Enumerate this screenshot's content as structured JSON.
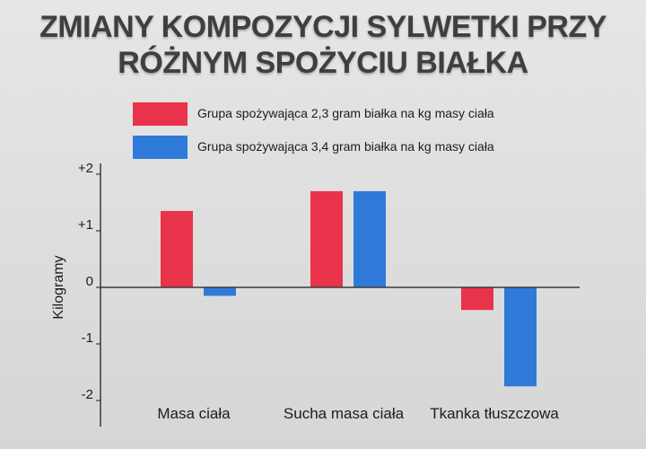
{
  "title_lines": [
    "ZMIANY KOMPOZYCJI SYLWETKI PRZY",
    "RÓŻNYM SPOŻYCIU BIAŁKA"
  ],
  "colors": {
    "series_red": "#e8334a",
    "series_blue": "#2f7ad9",
    "axis": "#3a3a3a"
  },
  "chart_data": {
    "type": "bar",
    "title": "ZMIANY KOMPOZYCJI SYLWETKI PRZY RÓŻNYM SPOŻYCIU BIAŁKA",
    "xlabel": "",
    "ylabel": "Kilogramy",
    "categories": [
      "Masa ciała",
      "Sucha masa ciała",
      "Tkanka tłuszczowa"
    ],
    "series": [
      {
        "name": "Grupa spożywająca 2,3 gram białka na kg masy ciała",
        "color": "#e8334a",
        "values": [
          1.35,
          1.7,
          -0.4
        ]
      },
      {
        "name": "Grupa spożywająca 3,4 gram białka na kg masy ciała",
        "color": "#2f7ad9",
        "values": [
          -0.15,
          1.7,
          -1.75
        ]
      }
    ],
    "y_ticks": [
      2,
      1,
      0,
      -1,
      -2
    ],
    "y_tick_labels": [
      "+2",
      "+1",
      "0",
      "-1",
      "-2"
    ],
    "ylim": [
      -2.4,
      2.3
    ],
    "grid": false,
    "legend_position": "top"
  }
}
